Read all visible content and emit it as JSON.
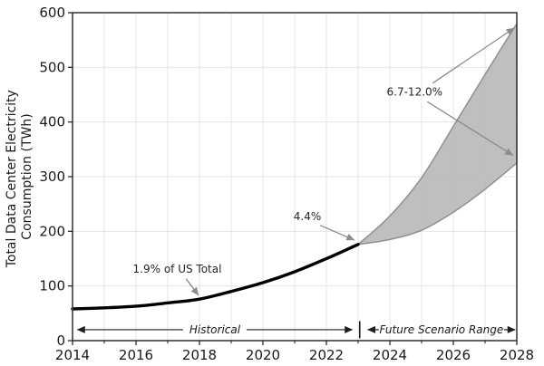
{
  "figure": {
    "ylabel_line1": "Total Data Center Electricity",
    "ylabel_line2": "Consumption (TWh)",
    "colors": {
      "background": "#ffffff",
      "spine": "#3c3c3c",
      "grid": "#e4e4e4",
      "tick": "#2b2b2b",
      "text": "#1a1a1a",
      "historical_line": "#000000",
      "range_fill": "#bcbcbc",
      "range_edge": "#909090",
      "annotation_arrow": "#8c8c8c",
      "span_arrow": "#1f1f1f"
    }
  },
  "chart_data": {
    "type": "line",
    "title": "",
    "xlabel": "",
    "ylabel": "Total Data Center Electricity Consumption (TWh)",
    "xlim": [
      2014,
      2028
    ],
    "ylim": [
      0,
      600
    ],
    "x_major_ticks": [
      2014,
      2016,
      2018,
      2020,
      2022,
      2024,
      2026,
      2028
    ],
    "x_minor_ticks": [
      2015,
      2017,
      2019,
      2021,
      2023,
      2025,
      2027
    ],
    "y_ticks": [
      0,
      100,
      200,
      300,
      400,
      500,
      600
    ],
    "grid": {
      "vertical": "every year",
      "horizontal": "every 100 TWh",
      "style": "light solid"
    },
    "series": [
      {
        "name": "Historical",
        "type": "line",
        "x": [
          2014,
          2015,
          2016,
          2017,
          2018,
          2019,
          2020,
          2021,
          2022,
          2023
        ],
        "values": [
          58,
          60,
          63,
          69,
          76,
          90,
          106,
          126,
          150,
          176
        ]
      }
    ],
    "range_band": {
      "name": "Future Scenario Range",
      "x": [
        2023,
        2024,
        2025,
        2026,
        2027,
        2028
      ],
      "low": [
        176,
        185,
        202,
        235,
        277,
        325
      ],
      "high": [
        176,
        228,
        298,
        392,
        487,
        580
      ]
    },
    "annotations": [
      {
        "label": "1.9% of US Total",
        "text_x": 2017.3,
        "text_y": 131,
        "arrows": [
          {
            "from": [
              2017.58,
              113
            ],
            "to": [
              2017.97,
              83
            ]
          }
        ]
      },
      {
        "label": "4.4%",
        "text_x": 2021.4,
        "text_y": 227,
        "arrows": [
          {
            "from": [
              2021.8,
              211
            ],
            "to": [
              2022.88,
              184
            ]
          }
        ]
      },
      {
        "label": "6.7-12.0%",
        "text_x": 2024.78,
        "text_y": 455,
        "arrows": [
          {
            "from": [
              2025.35,
              471
            ],
            "to": [
              2027.92,
              572
            ]
          },
          {
            "from": [
              2025.18,
              437
            ],
            "to": [
              2027.88,
              339
            ]
          }
        ]
      }
    ],
    "span_annotations": [
      {
        "label": "Historical",
        "x_from": 2014.15,
        "x_to": 2022.82,
        "y": 20
      },
      {
        "label": "Future Scenario Range",
        "x_from": 2023.3,
        "x_to": 2027.95,
        "y": 20
      }
    ],
    "divider": {
      "x": 2023.05,
      "y": 20
    }
  }
}
